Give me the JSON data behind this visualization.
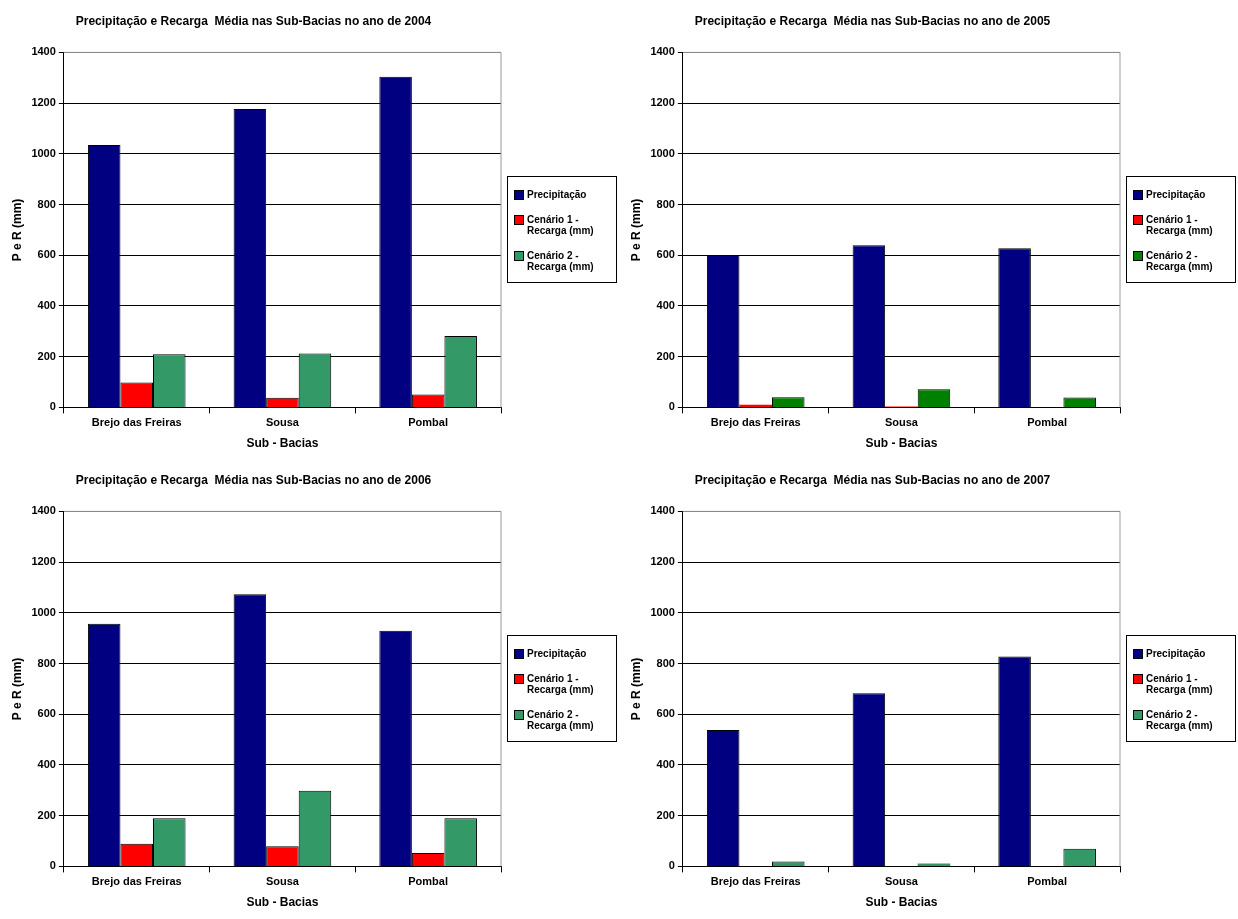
{
  "chart_data": [
    {
      "type": "bar",
      "title": "Precipitação e Recarga  Média nas Sub-Bacias no ano de 2004",
      "xlabel": "Sub - Bacias",
      "ylabel": "P e R (mm)",
      "categories": [
        "Brejo das Freiras",
        "Sousa",
        "Pombal"
      ],
      "series": [
        {
          "name": "Precipitação",
          "color": "#000080",
          "values": [
            1035,
            1177,
            1304
          ]
        },
        {
          "name": "Cenário 1 - Recarga (mm)",
          "color": "#ff0000",
          "values": [
            98,
            38,
            51
          ]
        },
        {
          "name": "Cenário 2 - Recarga (mm)",
          "color": "#339966",
          "values": [
            210,
            213,
            282
          ]
        }
      ],
      "ylim": [
        0,
        1400
      ],
      "yticks": [
        0,
        200,
        400,
        600,
        800,
        1000,
        1200,
        1400
      ],
      "grid": "y",
      "legend": "right"
    },
    {
      "type": "bar",
      "title": "Precipitação e Recarga  Média nas Sub-Bacias no ano de 2005",
      "xlabel": "Sub - Bacias",
      "ylabel": "P e R (mm)",
      "categories": [
        "Brejo das Freiras",
        "Sousa",
        "Pombal"
      ],
      "series": [
        {
          "name": "Precipitação",
          "color": "#000080",
          "values": [
            601,
            639,
            628
          ]
        },
        {
          "name": "Cenário 1 - Recarga (mm)",
          "color": "#ff0000",
          "values": [
            10,
            4,
            0
          ]
        },
        {
          "name": "Cenário 2 - Recarga (mm)",
          "color": "#008000",
          "values": [
            40,
            72,
            39
          ]
        }
      ],
      "ylim": [
        0,
        1400
      ],
      "yticks": [
        0,
        200,
        400,
        600,
        800,
        1000,
        1200,
        1400
      ],
      "grid": "y",
      "legend": "right"
    },
    {
      "type": "bar",
      "title": "Precipitação e Recarga  Média nas Sub-Bacias no ano de 2006",
      "xlabel": "Sub - Bacias",
      "ylabel": "P e R (mm)",
      "categories": [
        "Brejo das Freiras",
        "Sousa",
        "Pombal"
      ],
      "series": [
        {
          "name": "Precipitação",
          "color": "#000080",
          "values": [
            957,
            1073,
            929
          ]
        },
        {
          "name": "Cenário 1 - Recarga (mm)",
          "color": "#ff0000",
          "values": [
            89,
            79,
            53
          ]
        },
        {
          "name": "Cenário 2 - Recarga (mm)",
          "color": "#339966",
          "values": [
            190,
            298,
            190
          ]
        }
      ],
      "ylim": [
        0,
        1400
      ],
      "yticks": [
        0,
        200,
        400,
        600,
        800,
        1000,
        1200,
        1400
      ],
      "grid": "y",
      "legend": "right"
    },
    {
      "type": "bar",
      "title": "Precipitação e Recarga  Média nas Sub-Bacias no ano de 2007",
      "xlabel": "Sub - Bacias",
      "ylabel": "P e R (mm)",
      "categories": [
        "Brejo das Freiras",
        "Sousa",
        "Pombal"
      ],
      "series": [
        {
          "name": "Precipitação",
          "color": "#000080",
          "values": [
            538,
            683,
            828
          ]
        },
        {
          "name": "Cenário 1 - Recarga (mm)",
          "color": "#ff0000",
          "values": [
            0,
            0,
            0
          ]
        },
        {
          "name": "Cenário 2 - Recarga (mm)",
          "color": "#339966",
          "values": [
            19,
            11,
            70
          ]
        }
      ],
      "ylim": [
        0,
        1400
      ],
      "yticks": [
        0,
        200,
        400,
        600,
        800,
        1000,
        1200,
        1400
      ],
      "grid": "y",
      "legend": "right"
    }
  ]
}
